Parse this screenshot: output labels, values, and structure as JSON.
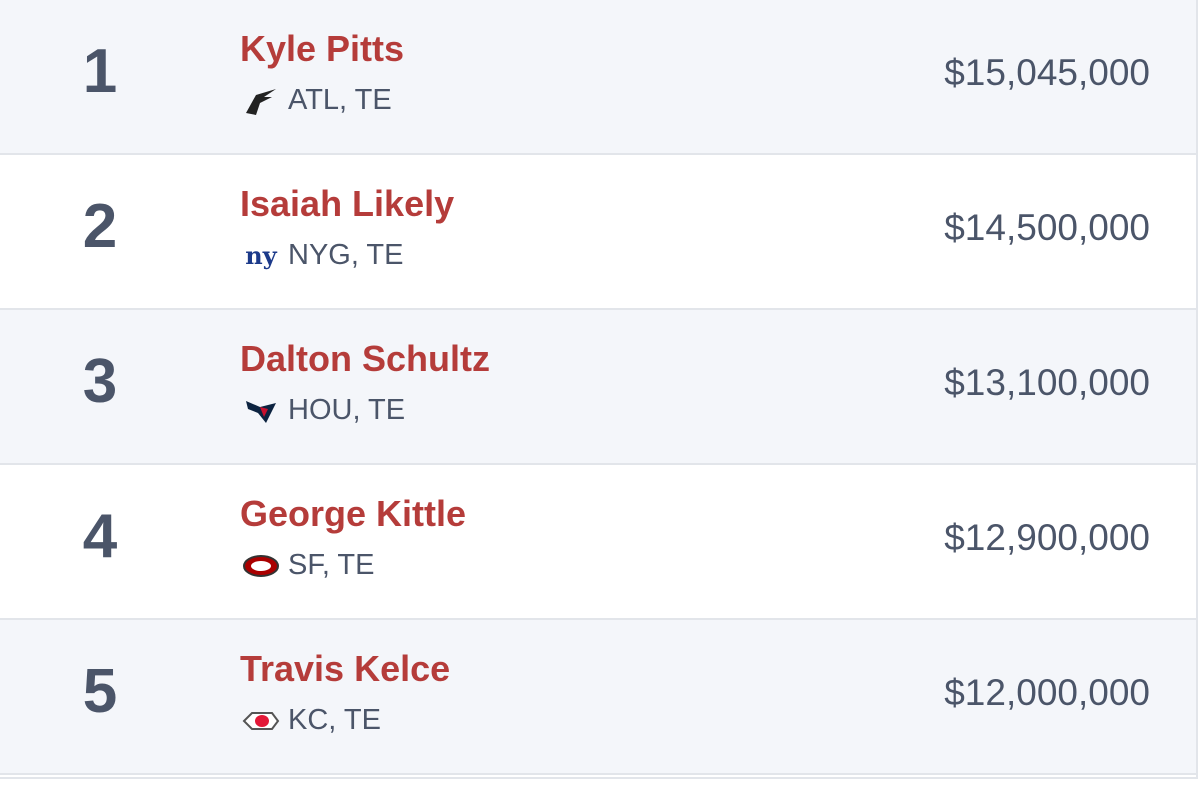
{
  "table": {
    "rows": [
      {
        "rank": 1,
        "name": "Kyle Pitts",
        "team_position": "ATL, TE",
        "salary": "$15,045,000"
      },
      {
        "rank": 2,
        "name": "Isaiah Likely",
        "team_position": "NYG, TE",
        "salary": "$14,500,000"
      },
      {
        "rank": 3,
        "name": "Dalton Schultz",
        "team_position": "HOU, TE",
        "salary": "$13,100,000"
      },
      {
        "rank": 4,
        "name": "George Kittle",
        "team_position": "SF, TE",
        "salary": "$12,900,000"
      },
      {
        "rank": 5,
        "name": "Travis Kelce",
        "team_position": "KC, TE",
        "salary": "$12,000,000"
      }
    ]
  }
}
